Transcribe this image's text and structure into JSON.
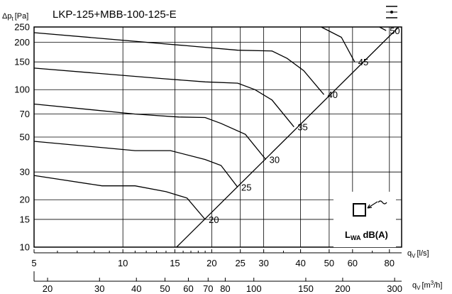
{
  "chart_data": {
    "type": "line",
    "title": "LKP-125+MBB-100-125-E",
    "ylabel": "Δp",
    "ylabel_sub": "t",
    "ylabel_unit": "[Pa]",
    "x_primary": {
      "label": "q",
      "label_sub": "V",
      "unit": "[l/s]",
      "scale": "log",
      "range": [
        5,
        88
      ],
      "ticks": [
        5,
        10,
        15,
        20,
        25,
        30,
        40,
        50,
        60,
        80
      ]
    },
    "x_secondary": {
      "label": "q",
      "label_sub": "V",
      "unit": "[m3/h]",
      "unit_prefix": "[m",
      "unit_sup": "3",
      "unit_suffix": "/h]",
      "scale": "log",
      "ticks": [
        20,
        30,
        40,
        50,
        60,
        70,
        80,
        100,
        150,
        200,
        300
      ]
    },
    "y_axis": {
      "scale": "log",
      "range": [
        10,
        250
      ],
      "ticks": [
        10,
        15,
        20,
        30,
        50,
        70,
        100,
        150,
        200,
        250
      ]
    },
    "grid": true,
    "series": [
      {
        "name": "20",
        "points": [
          [
            5,
            28.5
          ],
          [
            8.5,
            24.5
          ],
          [
            11,
            24.5
          ],
          [
            14,
            22.5
          ],
          [
            16.5,
            20.5
          ],
          [
            19,
            15
          ]
        ]
      },
      {
        "name": "25",
        "points": [
          [
            5,
            47
          ],
          [
            11,
            41
          ],
          [
            14.5,
            41
          ],
          [
            19,
            36
          ],
          [
            21.5,
            33
          ],
          [
            24.5,
            24
          ]
        ]
      },
      {
        "name": "30",
        "points": [
          [
            5,
            81
          ],
          [
            11,
            70
          ],
          [
            15.5,
            67
          ],
          [
            19,
            66.5
          ],
          [
            21.5,
            61
          ],
          [
            26,
            52
          ],
          [
            30.5,
            36
          ]
        ]
      },
      {
        "name": "35",
        "points": [
          [
            5,
            137
          ],
          [
            14,
            117
          ],
          [
            19,
            112
          ],
          [
            24.5,
            110
          ],
          [
            28,
            100
          ],
          [
            32,
            86
          ],
          [
            38,
            58
          ]
        ]
      },
      {
        "name": "40",
        "points": [
          [
            5,
            230
          ],
          [
            16.5,
            190
          ],
          [
            24.5,
            178
          ],
          [
            32,
            176
          ],
          [
            36,
            158
          ],
          [
            41,
            132
          ],
          [
            48,
            93
          ]
        ]
      },
      {
        "name": "45",
        "points": [
          [
            47,
            250
          ],
          [
            55,
            215
          ],
          [
            61,
            150
          ]
        ]
      },
      {
        "name": "50",
        "points": [
          [
            74,
            250
          ],
          [
            78,
            237
          ]
        ]
      }
    ],
    "system_line": {
      "points": [
        [
          15.2,
          10
        ],
        [
          86,
          250
        ]
      ]
    },
    "curve_labels": [
      "20",
      "25",
      "30",
      "35",
      "40",
      "45",
      "50"
    ],
    "legend_text": "L",
    "legend_sub": "WA",
    "legend_unit": "dB(A)"
  }
}
